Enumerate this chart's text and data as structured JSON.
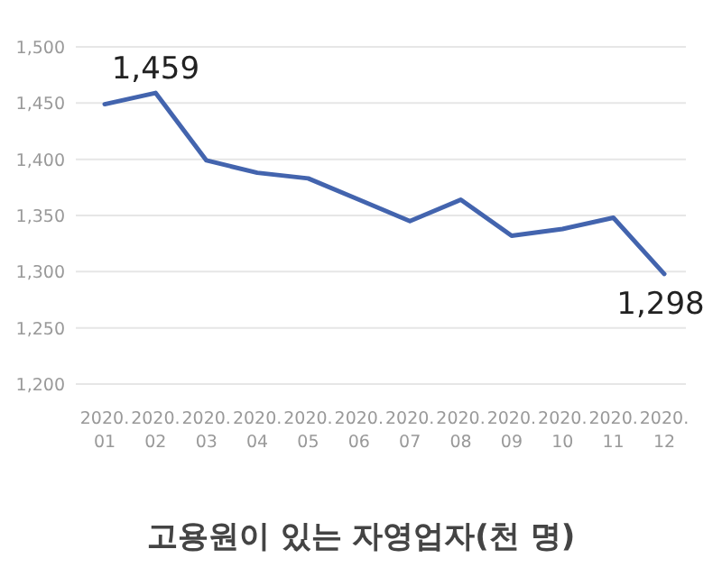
{
  "chart_data": {
    "type": "line",
    "title": "고용원이 있는 자영업자(천 명)",
    "categories": [
      "2020.\n01",
      "2020.\n02",
      "2020.\n03",
      "2020.\n04",
      "2020.\n05",
      "2020.\n06",
      "2020.\n07",
      "2020.\n08",
      "2020.\n09",
      "2020.\n10",
      "2020.\n11",
      "2020.\n12"
    ],
    "series": [
      {
        "color": "#4364ae",
        "values": [
          1449,
          1459,
          1399,
          1388,
          1383,
          1364,
          1345,
          1364,
          1332,
          1338,
          1348,
          1298
        ],
        "value_labels": [
          null,
          "1,459",
          null,
          null,
          null,
          null,
          null,
          null,
          null,
          null,
          null,
          "1,298"
        ]
      }
    ],
    "ylim": [
      1200,
      1500
    ],
    "yticks": [
      {
        "value": 1200,
        "label": "1,200"
      },
      {
        "value": 1250,
        "label": "1,250"
      },
      {
        "value": 1300,
        "label": "1,300"
      },
      {
        "value": 1350,
        "label": "1,350"
      },
      {
        "value": 1400,
        "label": "1,400"
      },
      {
        "value": 1450,
        "label": "1,450"
      },
      {
        "value": 1500,
        "label": "1,500"
      }
    ],
    "grid": "y",
    "marker": "none",
    "line_style": "solid"
  }
}
